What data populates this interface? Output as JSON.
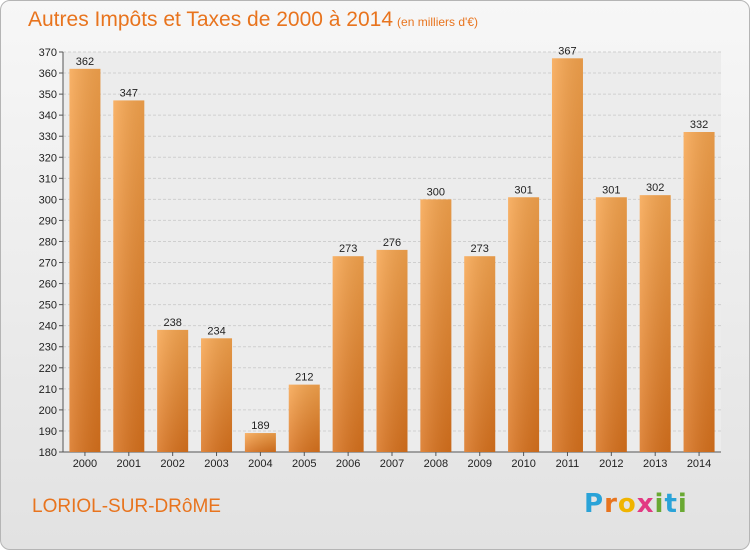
{
  "header": {
    "title": "Autres Impôts et Taxes de 2000 à 2014",
    "unit": "(en milliers d'€)"
  },
  "footer": {
    "commune": "LORIOL-SUR-DRôME",
    "logo_letters": [
      "P",
      "r",
      "o",
      "x",
      "i",
      "t",
      "i"
    ],
    "logo_colors": [
      "#2aa3d8",
      "#e8741e",
      "#f0b400",
      "#e23a83",
      "#6aa933",
      "#2aa3d8",
      "#6aa933"
    ]
  },
  "colors": {
    "bar_light": "#f7a54e",
    "bar_dark": "#d9721d",
    "accent": "#e8741e"
  },
  "chart_data": {
    "type": "bar",
    "title": "Autres Impôts et Taxes de 2000 à 2014",
    "xlabel": "",
    "ylabel": "",
    "categories": [
      "2000",
      "2001",
      "2002",
      "2003",
      "2004",
      "2005",
      "2006",
      "2007",
      "2008",
      "2009",
      "2010",
      "2011",
      "2012",
      "2013",
      "2014"
    ],
    "values": [
      362,
      347,
      238,
      234,
      189,
      212,
      273,
      276,
      300,
      273,
      301,
      367,
      301,
      302,
      332
    ],
    "ylim": [
      180,
      370
    ],
    "yticks": [
      180,
      190,
      200,
      210,
      220,
      230,
      240,
      250,
      260,
      270,
      280,
      290,
      300,
      310,
      320,
      330,
      340,
      350,
      360,
      370
    ],
    "grid": true
  }
}
